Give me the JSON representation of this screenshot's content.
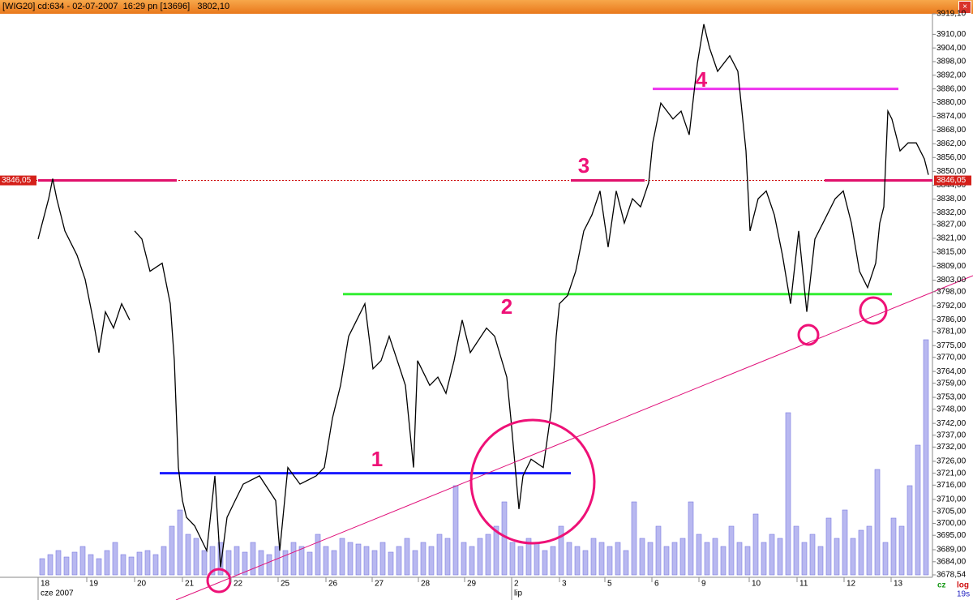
{
  "title_bar": "[WIG20] cd:634 - 02-07-2007  16:29 pn [13696]   3802,10",
  "chart_data": {
    "type": "line",
    "color": "#000000",
    "log_scale": true,
    "ylim": [
      3678.54,
      3919.1
    ],
    "xlim": [
      0,
      1103
    ],
    "x": [
      0,
      13,
      18,
      23,
      33,
      48,
      58,
      68,
      75,
      83,
      93,
      103,
      113,
      116,
      119,
      128,
      138,
      153,
      163,
      168,
      173,
      178,
      183,
      193,
      208,
      218,
      225,
      233,
      243,
      253,
      273,
      293,
      298,
      308,
      323,
      343,
      353,
      363,
      373,
      383,
      393,
      403,
      408,
      413,
      423,
      433,
      443,
      453,
      458,
      463,
      468,
      483,
      493,
      503,
      513,
      523,
      533,
      553,
      563,
      578,
      583,
      593,
      598,
      608,
      623,
      633,
      639,
      643,
      653,
      663,
      673,
      683,
      693,
      703,
      713,
      723,
      733,
      743,
      753,
      758,
      768,
      783,
      793,
      803,
      813,
      821,
      828,
      838,
      853,
      863,
      868,
      873,
      878,
      888,
      898,
      908,
      918,
      928,
      938,
      948,
      958,
      973,
      983,
      993,
      1003,
      1013,
      1023,
      1033,
      1038,
      1043,
      1048,
      1053,
      1063,
      1073,
      1083,
      1093,
      1098
    ],
    "values": [
      3820.7,
      3838.1,
      3846.8,
      3838.1,
      3824.2,
      3813.7,
      3803.3,
      3785.9,
      3772.0,
      3789.4,
      3782.5,
      3792.9,
      3785.9,
      null,
      3824.2,
      3820.7,
      3806.8,
      3810.3,
      3792.9,
      3768.6,
      3723.4,
      3709.5,
      3702.5,
      3699.0,
      3688.6,
      3719.9,
      3681.7,
      3702.5,
      3709.5,
      3716.4,
      3719.9,
      3709.5,
      3688.6,
      3723.4,
      3716.4,
      3719.9,
      3723.4,
      3744.2,
      3758.1,
      3779.0,
      3785.9,
      3792.9,
      3779.0,
      3765.1,
      3768.6,
      3779.0,
      3768.6,
      3758.1,
      3740.8,
      3723.4,
      3768.6,
      3758.1,
      3761.6,
      3754.7,
      3768.6,
      3785.9,
      3772.0,
      3782.5,
      3779.0,
      3761.6,
      3744.2,
      3706.0,
      3719.9,
      3726.9,
      3723.4,
      3747.7,
      3779.0,
      3792.9,
      3796.4,
      3806.8,
      3824.2,
      3831.1,
      3841.5,
      3817.2,
      3841.5,
      3827.6,
      3838.1,
      3834.6,
      3845.0,
      3862.4,
      3879.8,
      3872.8,
      3876.3,
      3865.9,
      3897.1,
      3914.5,
      3904.1,
      3893.7,
      3900.6,
      3893.7,
      3876.3,
      3858.9,
      3824.2,
      3838.1,
      3841.5,
      3831.1,
      3813.7,
      3792.9,
      3824.2,
      3789.4,
      3820.7,
      3831.1,
      3838.1,
      3841.5,
      3827.6,
      3806.8,
      3799.8,
      3810.3,
      3827.6,
      3834.6,
      3876.3,
      3872.8,
      3858.9,
      3862.4,
      3862.4,
      3855.4,
      3848.5
    ],
    "yticks": [
      {
        "value": 3919.1,
        "label": "3919,10"
      },
      {
        "value": 3910,
        "label": "3910,00"
      },
      {
        "value": 3904,
        "label": "3904,00"
      },
      {
        "value": 3898,
        "label": "3898,00"
      },
      {
        "value": 3892,
        "label": "3892,00"
      },
      {
        "value": 3886,
        "label": "3886,00"
      },
      {
        "value": 3880,
        "label": "3880,00"
      },
      {
        "value": 3874,
        "label": "3874,00"
      },
      {
        "value": 3868,
        "label": "3868,00"
      },
      {
        "value": 3862,
        "label": "3862,00"
      },
      {
        "value": 3856,
        "label": "3856,00"
      },
      {
        "value": 3850,
        "label": "3850,00"
      },
      {
        "value": 3844,
        "label": "3844,00"
      },
      {
        "value": 3838,
        "label": "3838,00"
      },
      {
        "value": 3832,
        "label": "3832,00"
      },
      {
        "value": 3827,
        "label": "3827,00"
      },
      {
        "value": 3821,
        "label": "3821,00"
      },
      {
        "value": 3815,
        "label": "3815,00"
      },
      {
        "value": 3809,
        "label": "3809,00"
      },
      {
        "value": 3803,
        "label": "3803,00"
      },
      {
        "value": 3798,
        "label": "3798,00"
      },
      {
        "value": 3792,
        "label": "3792,00"
      },
      {
        "value": 3786,
        "label": "3786,00"
      },
      {
        "value": 3781,
        "label": "3781,00"
      },
      {
        "value": 3775,
        "label": "3775,00"
      },
      {
        "value": 3770,
        "label": "3770,00"
      },
      {
        "value": 3764,
        "label": "3764,00"
      },
      {
        "value": 3759,
        "label": "3759,00"
      },
      {
        "value": 3753,
        "label": "3753,00"
      },
      {
        "value": 3748,
        "label": "3748,00"
      },
      {
        "value": 3742,
        "label": "3742,00"
      },
      {
        "value": 3737,
        "label": "3737,00"
      },
      {
        "value": 3732,
        "label": "3732,00"
      },
      {
        "value": 3726,
        "label": "3726,00"
      },
      {
        "value": 3721,
        "label": "3721,00"
      },
      {
        "value": 3716,
        "label": "3716,00"
      },
      {
        "value": 3710,
        "label": "3710,00"
      },
      {
        "value": 3705,
        "label": "3705,00"
      },
      {
        "value": 3700,
        "label": "3700,00"
      },
      {
        "value": 3695,
        "label": "3695,00"
      },
      {
        "value": 3689,
        "label": "3689,00"
      },
      {
        "value": 3684,
        "label": "3684,00"
      },
      {
        "value": 3678.54,
        "label": "3678,54"
      }
    ],
    "xticks": [
      {
        "value": 0,
        "label": "18"
      },
      {
        "value": 60,
        "label": "19"
      },
      {
        "value": 119,
        "label": "20"
      },
      {
        "value": 178,
        "label": "21"
      },
      {
        "value": 238,
        "label": "22"
      },
      {
        "value": 296,
        "label": "25"
      },
      {
        "value": 355,
        "label": "26"
      },
      {
        "value": 412,
        "label": "27"
      },
      {
        "value": 469,
        "label": "28"
      },
      {
        "value": 526,
        "label": "29"
      },
      {
        "value": 584,
        "label": "2"
      },
      {
        "value": 643,
        "label": "3"
      },
      {
        "value": 699,
        "label": "5"
      },
      {
        "value": 757,
        "label": "6"
      },
      {
        "value": 815,
        "label": "9"
      },
      {
        "value": 877,
        "label": "10"
      },
      {
        "value": 936,
        "label": "11"
      },
      {
        "value": 994,
        "label": "12"
      },
      {
        "value": 1052,
        "label": "13"
      }
    ],
    "month_labels": [
      {
        "value": 0,
        "label": "cze 2007"
      },
      {
        "value": 584,
        "label": "lip"
      }
    ],
    "volume": {
      "color": "#b8b8f0",
      "values": [
        20,
        25,
        30,
        22,
        28,
        35,
        25,
        20,
        30,
        40,
        25,
        22,
        28,
        30,
        25,
        35,
        60,
        80,
        50,
        45,
        30,
        35,
        40,
        30,
        35,
        28,
        40,
        30,
        25,
        35,
        30,
        40,
        35,
        28,
        50,
        35,
        30,
        45,
        40,
        38,
        35,
        30,
        40,
        28,
        35,
        45,
        30,
        40,
        35,
        50,
        45,
        110,
        40,
        35,
        45,
        50,
        60,
        90,
        40,
        35,
        45,
        40,
        30,
        35,
        60,
        40,
        35,
        30,
        45,
        40,
        35,
        40,
        30,
        90,
        45,
        40,
        60,
        35,
        40,
        45,
        90,
        50,
        40,
        45,
        35,
        60,
        40,
        35,
        75,
        40,
        50,
        45,
        200,
        60,
        40,
        50,
        35,
        70,
        45,
        80,
        45,
        55,
        60,
        130,
        40,
        70,
        60,
        110,
        160,
        290
      ]
    },
    "last_price": {
      "value": 3846.05,
      "label": "3846,05",
      "color": "#e0106b"
    },
    "levels": [
      {
        "value": 3797,
        "color": "#33ee33"
      },
      {
        "value": 3721,
        "color": "#1a1aff"
      },
      {
        "value": 3886,
        "color": "#ee33ee"
      }
    ],
    "annotations": [
      "1",
      "2",
      "3",
      "4"
    ],
    "status": [
      "cz",
      "log",
      "19s"
    ]
  }
}
